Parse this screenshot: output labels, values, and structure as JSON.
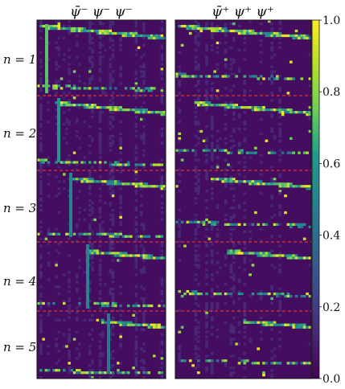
{
  "chart_data": {
    "type": "heatmap",
    "titles": [
      "ψ̄⁻ ψ⁻ ψ⁻",
      "ψ̄⁺ ψ⁺ ψ⁺"
    ],
    "row_labels": [
      "n = 1",
      "n = 2",
      "n = 3",
      "n = 4",
      "n = 5"
    ],
    "colorbar": {
      "range": [
        0.0,
        1.0
      ],
      "ticks": [
        "0.0",
        "0.2",
        "0.4",
        "0.6",
        "0.8",
        "1.0"
      ],
      "colormap": [
        "#440154",
        "#482777",
        "#3f4a8a",
        "#31678e",
        "#26838f",
        "#1f9d8a",
        "#6cce5a",
        "#b6de2b",
        "#fee825"
      ]
    },
    "grid": {
      "columns": 50,
      "rows": 150,
      "blocks": 5
    },
    "separator_color": "#e0322c"
  }
}
